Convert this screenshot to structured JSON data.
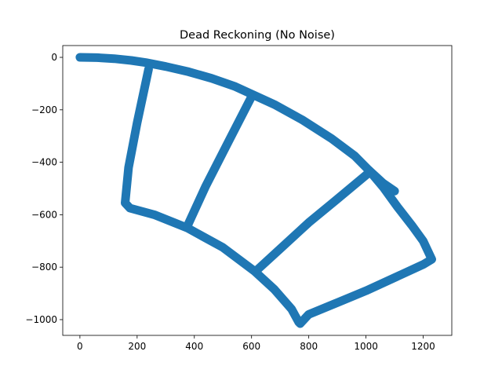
{
  "chart_data": {
    "type": "scatter",
    "title": "Dead Reckoning (No Noise)",
    "xlabel": "",
    "ylabel": "",
    "xlim": [
      -60,
      1300
    ],
    "ylim": [
      -1060,
      45
    ],
    "x_ticks": [
      0,
      200,
      400,
      600,
      800,
      1000,
      1200
    ],
    "y_ticks": [
      0,
      -200,
      -400,
      -600,
      -800,
      -1000
    ],
    "x_tick_labels": [
      "0",
      "200",
      "400",
      "600",
      "800",
      "1000",
      "1200"
    ],
    "y_tick_labels": [
      "0",
      "−200",
      "−400",
      "−600",
      "−800",
      "−1000"
    ],
    "grid": false,
    "legend": "none",
    "series_color": "#1f77b4",
    "series": [
      {
        "name": "",
        "segments": [
          [
            [
              0,
              0
            ],
            [
              60,
              -1
            ],
            [
              120,
              -5
            ],
            [
              180,
              -12
            ],
            [
              230,
              -20
            ],
            [
              300,
              -35
            ],
            [
              380,
              -55
            ],
            [
              460,
              -80
            ],
            [
              540,
              -110
            ],
            [
              600,
              -140
            ],
            [
              680,
              -180
            ],
            [
              780,
              -240
            ],
            [
              880,
              -310
            ],
            [
              960,
              -375
            ],
            [
              1010,
              -430
            ],
            [
              1060,
              -480
            ],
            [
              1100,
              -510
            ]
          ],
          [
            [
              240,
              -45
            ],
            [
              200,
              -250
            ],
            [
              170,
              -420
            ],
            [
              158,
              -555
            ],
            [
              175,
              -575
            ],
            [
              260,
              -600
            ],
            [
              375,
              -650
            ],
            [
              500,
              -725
            ],
            [
              610,
              -815
            ],
            [
              680,
              -885
            ],
            [
              740,
              -960
            ],
            [
              765,
              -1010
            ]
          ],
          [
            [
              600,
              -150
            ],
            [
              520,
              -320
            ],
            [
              440,
              -490
            ],
            [
              375,
              -645
            ]
          ],
          [
            [
              1010,
              -440
            ],
            [
              900,
              -540
            ],
            [
              800,
              -630
            ],
            [
              700,
              -730
            ],
            [
              620,
              -810
            ]
          ],
          [
            [
              1010,
              -430
            ],
            [
              1060,
              -495
            ],
            [
              1110,
              -570
            ],
            [
              1160,
              -640
            ],
            [
              1200,
              -700
            ],
            [
              1230,
              -770
            ],
            [
              1200,
              -790
            ],
            [
              1100,
              -840
            ],
            [
              1000,
              -890
            ],
            [
              900,
              -935
            ],
            [
              800,
              -980
            ],
            [
              770,
              -1015
            ]
          ]
        ]
      }
    ]
  }
}
